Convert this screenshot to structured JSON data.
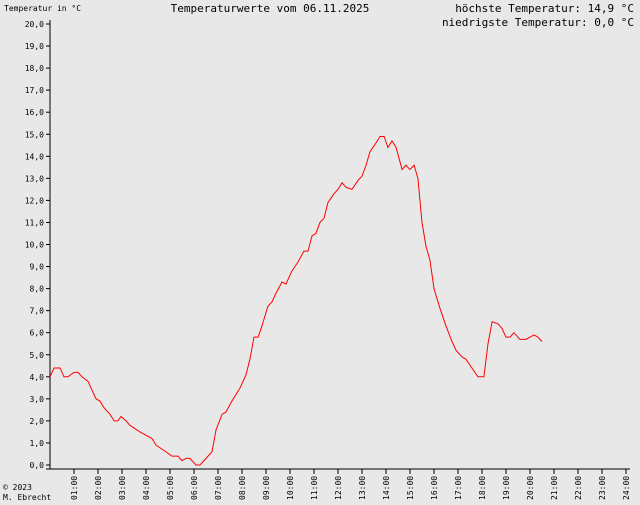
{
  "chart_data": {
    "type": "line",
    "title": "Temperaturwerte vom 06.11.2025",
    "y_axis_label": "Temperatur in °C",
    "annotations": [
      "höchste Temperatur: 14,9 °C",
      "niedrigste Temperatur: 0,0 °C"
    ],
    "footer": [
      "© 2023",
      "M. Ebrecht"
    ],
    "x": [
      0,
      0.17,
      0.42,
      0.58,
      0.75,
      1.0,
      1.17,
      1.33,
      1.58,
      1.92,
      2.08,
      2.25,
      2.5,
      2.67,
      2.83,
      2.96,
      3.17,
      3.33,
      3.75,
      4.25,
      4.42,
      4.83,
      5.08,
      5.33,
      5.5,
      5.67,
      5.83,
      6.08,
      6.25,
      6.5,
      6.75,
      6.92,
      7.17,
      7.33,
      7.58,
      7.92,
      8.17,
      8.33,
      8.5,
      8.67,
      8.83,
      9.08,
      9.25,
      9.42,
      9.67,
      9.83,
      10.08,
      10.33,
      10.58,
      10.75,
      10.92,
      11.08,
      11.25,
      11.42,
      11.58,
      11.83,
      12.0,
      12.17,
      12.33,
      12.58,
      12.83,
      13.0,
      13.17,
      13.33,
      13.58,
      13.75,
      13.92,
      14.08,
      14.25,
      14.42,
      14.67,
      14.83,
      15.0,
      15.17,
      15.33,
      15.5,
      15.67,
      15.83,
      16.0,
      16.25,
      16.5,
      16.75,
      16.92,
      17.17,
      17.33,
      17.58,
      17.83,
      18.08,
      18.25,
      18.42,
      18.67,
      18.83,
      19.0,
      19.17,
      19.33,
      19.58,
      19.83,
      20.17,
      20.33,
      20.5
    ],
    "series": [
      {
        "name": "Temperatur",
        "color": "#ff0000",
        "values": [
          4.0,
          4.4,
          4.4,
          4.0,
          4.0,
          4.2,
          4.2,
          4.0,
          3.8,
          3.0,
          2.9,
          2.6,
          2.3,
          2.0,
          2.0,
          2.2,
          2.0,
          1.8,
          1.5,
          1.2,
          0.9,
          0.6,
          0.4,
          0.4,
          0.2,
          0.3,
          0.3,
          0.0,
          0.0,
          0.3,
          0.6,
          1.6,
          2.3,
          2.4,
          2.9,
          3.5,
          4.1,
          4.8,
          5.8,
          5.8,
          6.3,
          7.2,
          7.4,
          7.8,
          8.3,
          8.2,
          8.8,
          9.2,
          9.7,
          9.7,
          10.4,
          10.5,
          11.0,
          11.2,
          11.9,
          12.3,
          12.5,
          12.8,
          12.6,
          12.5,
          12.9,
          13.1,
          13.6,
          14.2,
          14.6,
          14.9,
          14.9,
          14.4,
          14.7,
          14.4,
          13.4,
          13.6,
          13.4,
          13.6,
          13.0,
          11.0,
          9.9,
          9.3,
          8.0,
          7.1,
          6.3,
          5.6,
          5.2,
          4.9,
          4.8,
          4.4,
          4.0,
          4.0,
          5.5,
          6.5,
          6.4,
          6.2,
          5.8,
          5.8,
          6.0,
          5.7,
          5.7,
          5.9,
          5.8,
          5.6
        ]
      }
    ],
    "xlim": [
      0,
      24
    ],
    "xticks": [
      {
        "value": 1,
        "label": "01:00"
      },
      {
        "value": 2,
        "label": "02:00"
      },
      {
        "value": 3,
        "label": "03:00"
      },
      {
        "value": 4,
        "label": "04:00"
      },
      {
        "value": 5,
        "label": "05:00"
      },
      {
        "value": 6,
        "label": "06:00"
      },
      {
        "value": 7,
        "label": "07:00"
      },
      {
        "value": 8,
        "label": "08:00"
      },
      {
        "value": 9,
        "label": "09:00"
      },
      {
        "value": 10,
        "label": "10:00"
      },
      {
        "value": 11,
        "label": "11:00"
      },
      {
        "value": 12,
        "label": "12:00"
      },
      {
        "value": 13,
        "label": "13:00"
      },
      {
        "value": 14,
        "label": "14:00"
      },
      {
        "value": 15,
        "label": "15:00"
      },
      {
        "value": 16,
        "label": "16:00"
      },
      {
        "value": 17,
        "label": "17:00"
      },
      {
        "value": 18,
        "label": "18:00"
      },
      {
        "value": 19,
        "label": "19:00"
      },
      {
        "value": 20,
        "label": "20:00"
      },
      {
        "value": 21,
        "label": "21:00"
      },
      {
        "value": 22,
        "label": "22:00"
      },
      {
        "value": 23,
        "label": "23:00"
      },
      {
        "value": 24,
        "label": "24:00"
      }
    ],
    "ylim": [
      0,
      20
    ],
    "yticks": [
      {
        "value": 0,
        "label": "0,0"
      },
      {
        "value": 1,
        "label": "1,0"
      },
      {
        "value": 2,
        "label": "2,0"
      },
      {
        "value": 3,
        "label": "3,0"
      },
      {
        "value": 4,
        "label": "4,0"
      },
      {
        "value": 5,
        "label": "5,0"
      },
      {
        "value": 6,
        "label": "6,0"
      },
      {
        "value": 7,
        "label": "7,0"
      },
      {
        "value": 8,
        "label": "8,0"
      },
      {
        "value": 9,
        "label": "9,0"
      },
      {
        "value": 10,
        "label": "10,0"
      },
      {
        "value": 11,
        "label": "11,0"
      },
      {
        "value": 12,
        "label": "12,0"
      },
      {
        "value": 13,
        "label": "13,0"
      },
      {
        "value": 14,
        "label": "14,0"
      },
      {
        "value": 15,
        "label": "15,0"
      },
      {
        "value": 16,
        "label": "16,0"
      },
      {
        "value": 17,
        "label": "17,0"
      },
      {
        "value": 18,
        "label": "18,0"
      },
      {
        "value": 19,
        "label": "19,0"
      },
      {
        "value": 20,
        "label": "20,0"
      }
    ]
  }
}
